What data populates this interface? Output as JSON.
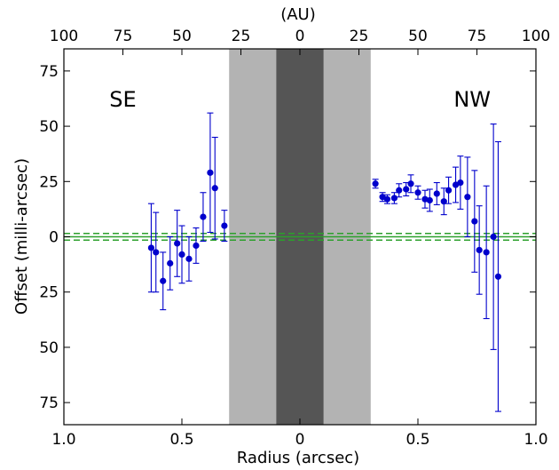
{
  "chart_data": {
    "type": "scatter",
    "title": "",
    "xlabel": "Radius (arcsec)",
    "ylabel": "Offset (milli-arcsec)",
    "top_axis_label": "(AU)",
    "xlim": [
      -1.0,
      1.0
    ],
    "ylim": [
      -85,
      85
    ],
    "grid": false,
    "x_ticks": [
      {
        "value": -1.0,
        "label": "1.0"
      },
      {
        "value": -0.5,
        "label": "0.5"
      },
      {
        "value": 0.0,
        "label": "0"
      },
      {
        "value": 0.5,
        "label": "0.5"
      },
      {
        "value": 1.0,
        "label": "1.0"
      }
    ],
    "y_ticks": [
      {
        "value": 75,
        "label": "75"
      },
      {
        "value": 50,
        "label": "50"
      },
      {
        "value": 25,
        "label": "25"
      },
      {
        "value": 0,
        "label": "0"
      },
      {
        "value": -25,
        "label": "25"
      },
      {
        "value": -50,
        "label": "50"
      },
      {
        "value": -75,
        "label": "75"
      }
    ],
    "top_ticks": [
      {
        "value": -1.0,
        "label": "100"
      },
      {
        "value": -0.75,
        "label": "75"
      },
      {
        "value": -0.5,
        "label": "50"
      },
      {
        "value": -0.25,
        "label": "25"
      },
      {
        "value": 0.0,
        "label": "0"
      },
      {
        "value": 0.25,
        "label": "25"
      },
      {
        "value": 0.5,
        "label": "50"
      },
      {
        "value": 0.75,
        "label": "75"
      },
      {
        "value": 1.0,
        "label": "100"
      }
    ],
    "annotations": [
      {
        "text": "SE",
        "x": -0.75,
        "y": 62
      },
      {
        "text": "NW",
        "x": 0.73,
        "y": 62
      }
    ],
    "shaded_regions": [
      {
        "x0": -0.3,
        "x1": 0.3,
        "color": "#b3b3b3"
      },
      {
        "x0": -0.1,
        "x1": 0.1,
        "color": "#555555"
      }
    ],
    "reference_lines": [
      {
        "y": 0,
        "style": "solid",
        "color": "#2ca02c"
      },
      {
        "y": 1.5,
        "style": "dashed",
        "color": "#2ca02c"
      },
      {
        "y": -1.5,
        "style": "dashed",
        "color": "#2ca02c"
      }
    ],
    "series": [
      {
        "color": "#0000cc",
        "points": [
          {
            "x": -0.63,
            "y": -5,
            "err": 20
          },
          {
            "x": -0.61,
            "y": -7,
            "err": 18
          },
          {
            "x": -0.58,
            "y": -20,
            "err": 13
          },
          {
            "x": -0.55,
            "y": -12,
            "err": 12
          },
          {
            "x": -0.52,
            "y": -3,
            "err": 15
          },
          {
            "x": -0.5,
            "y": -8,
            "err": 13
          },
          {
            "x": -0.47,
            "y": -10,
            "err": 10
          },
          {
            "x": -0.44,
            "y": -4,
            "err": 8
          },
          {
            "x": -0.41,
            "y": 9,
            "err": 11
          },
          {
            "x": -0.38,
            "y": 29,
            "err": 27
          },
          {
            "x": -0.36,
            "y": 22,
            "err": 23
          },
          {
            "x": -0.32,
            "y": 5,
            "err": 7
          },
          {
            "x": 0.32,
            "y": 24,
            "err": 2
          },
          {
            "x": 0.35,
            "y": 18,
            "err": 2
          },
          {
            "x": 0.37,
            "y": 17,
            "err": 2
          },
          {
            "x": 0.4,
            "y": 17.5,
            "err": 2.5
          },
          {
            "x": 0.42,
            "y": 21,
            "err": 3
          },
          {
            "x": 0.45,
            "y": 21.5,
            "err": 3
          },
          {
            "x": 0.47,
            "y": 24,
            "err": 4
          },
          {
            "x": 0.5,
            "y": 20,
            "err": 3
          },
          {
            "x": 0.53,
            "y": 17,
            "err": 4
          },
          {
            "x": 0.55,
            "y": 16.5,
            "err": 5
          },
          {
            "x": 0.58,
            "y": 19.5,
            "err": 5
          },
          {
            "x": 0.61,
            "y": 16,
            "err": 6
          },
          {
            "x": 0.63,
            "y": 21,
            "err": 6
          },
          {
            "x": 0.66,
            "y": 23.5,
            "err": 8
          },
          {
            "x": 0.68,
            "y": 24.5,
            "err": 12
          },
          {
            "x": 0.71,
            "y": 18,
            "err": 18
          },
          {
            "x": 0.74,
            "y": 7,
            "err": 23
          },
          {
            "x": 0.76,
            "y": -6,
            "err": 20
          },
          {
            "x": 0.79,
            "y": -7,
            "err": 30
          },
          {
            "x": 0.82,
            "y": 0,
            "err": 51
          },
          {
            "x": 0.84,
            "y": -18,
            "err": 61
          }
        ]
      }
    ]
  }
}
